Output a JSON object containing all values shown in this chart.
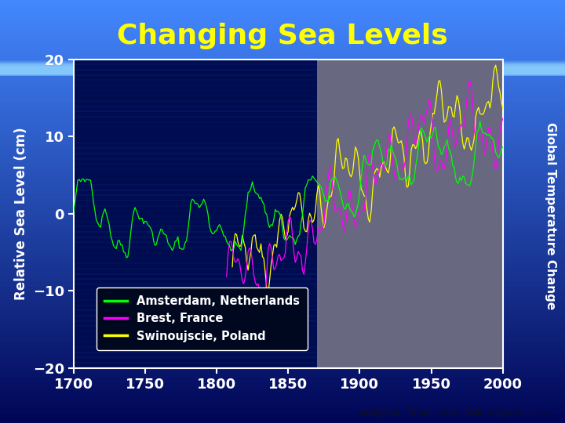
{
  "title": "Changing Sea Levels",
  "title_color": "#FFFF00",
  "title_fontsize": 26,
  "ylabel_left": "Relative Sea Level (cm)",
  "ylabel_right": "Global Temperature Change",
  "ylabel_color": "#FFFFFF",
  "ylim": [
    -20,
    20
  ],
  "xlim": [
    1700,
    2000
  ],
  "yticks": [
    -20,
    -10,
    0,
    10,
    20
  ],
  "xticks": [
    1700,
    1750,
    1800,
    1850,
    1900,
    1950,
    2000
  ],
  "tick_color": "#FFFFFF",
  "tick_fontsize": 13,
  "split_year": 1870,
  "legend_labels": [
    "Amsterdam, Netherlands",
    "Brest, France",
    "Swinoujscie, Poland"
  ],
  "line_colors": [
    "#00FF00",
    "#FF00FF",
    "#FFFF00"
  ],
  "legend_bg": "#000820",
  "footer": "Adapted from IPCC SYR Figure 2-5",
  "footer_fontsize": 9,
  "bg_ocean_dark": "#000C6B",
  "bg_ocean_mid": "#0A2080",
  "bg_right_color": "#6A6A8A",
  "outer_bg_top": "#4488FF",
  "outer_bg_bot": "#000850"
}
